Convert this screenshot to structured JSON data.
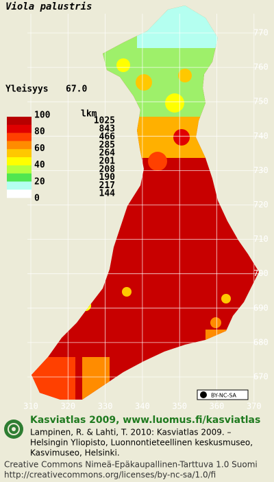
{
  "title": "Viola palustris",
  "frequency": {
    "label": "Yleisyys",
    "value": "67.0"
  },
  "legend": {
    "scale_labels": [
      100,
      80,
      60,
      40,
      20,
      0
    ],
    "count_header": "lkm",
    "counts": [
      1025,
      843,
      466,
      285,
      264,
      201,
      208,
      190,
      217,
      144
    ],
    "colors": [
      "#b80000",
      "#e00000",
      "#ff4000",
      "#ff8c00",
      "#ffc800",
      "#ffff00",
      "#b4ff3c",
      "#50e650",
      "#b4fff0",
      "#ffffff"
    ]
  },
  "grid": {
    "y_labels": [
      770,
      760,
      750,
      740,
      730,
      720,
      710,
      700,
      690,
      680,
      670
    ],
    "x_labels": [
      310,
      320,
      330,
      340,
      350,
      360,
      370
    ]
  },
  "license_badge": "BY-NC-SA",
  "footer": {
    "heading": "Kasviatlas 2009, www.luomus.fi/kasviatlas",
    "citation": [
      "Lampinen, R. & Lahti, T. 2010: Kasviatlas 2009. –",
      "Helsingin Yliopisto, Luonnontieteellinen keskusmuseo,",
      "Kasvimuseo, Helsinki."
    ],
    "license": [
      "Creative Commons Nimeä-Epäkaupallinen-Tarttuva 1.0 Suomi",
      "http://creativecommons.org/licenses/by-nc-sa/1.0/fi"
    ]
  }
}
